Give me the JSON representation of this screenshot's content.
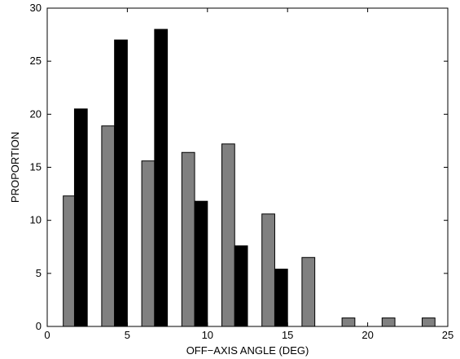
{
  "chart_data": {
    "type": "bar",
    "xlabel": "OFF−AXIS ANGLE (DEG)",
    "ylabel": "PROPORTION",
    "xlim": [
      0,
      25
    ],
    "ylim": [
      0,
      30
    ],
    "xticks": [
      0,
      5,
      10,
      15,
      20,
      25
    ],
    "yticks": [
      0,
      5,
      10,
      15,
      20,
      25,
      30
    ],
    "grid": false,
    "bar_width": 0.8,
    "series": [
      {
        "color": "#808080",
        "x": [
          1.4,
          3.8,
          6.3,
          8.8,
          11.3,
          13.8,
          16.3,
          18.8,
          21.3,
          23.8
        ],
        "values": [
          12.3,
          18.9,
          15.6,
          16.4,
          17.2,
          10.6,
          6.5,
          0.8,
          0.8,
          0.8
        ]
      },
      {
        "color": "#000000",
        "x": [
          2.1,
          4.6,
          7.1,
          9.6,
          12.1,
          14.6
        ],
        "values": [
          20.5,
          27.0,
          28.0,
          11.8,
          7.6,
          5.4
        ]
      }
    ]
  }
}
